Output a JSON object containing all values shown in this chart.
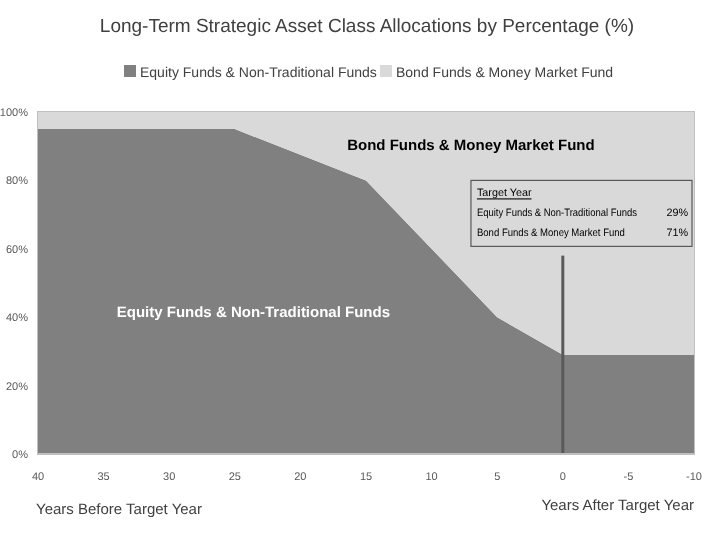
{
  "chart_data": {
    "type": "area",
    "stacked": true,
    "title": "Long-Term Strategic Asset Class Allocations by Percentage (%)",
    "xlabel": "Years Before Target Year",
    "x": [
      40,
      25,
      15,
      5,
      0,
      -10
    ],
    "series": [
      {
        "name": "Equity Funds & Non-Traditional Funds",
        "color": "#808080",
        "values": [
          95,
          95,
          80,
          40,
          29,
          29
        ]
      },
      {
        "name": "Bond Funds & Money Market Fund",
        "color": "#d9d9d9",
        "values": [
          5,
          5,
          20,
          60,
          71,
          71
        ]
      }
    ],
    "xlim": [
      40,
      -10
    ],
    "xticks": [
      40,
      35,
      30,
      25,
      20,
      15,
      10,
      5,
      0,
      -5,
      -10
    ],
    "ylim": [
      0,
      100
    ],
    "yticks": [
      {
        "value": 0,
        "label": "0%"
      },
      {
        "value": 20,
        "label": "20%"
      },
      {
        "value": 40,
        "label": "40%"
      },
      {
        "value": 60,
        "label": "60%"
      },
      {
        "value": 80,
        "label": "80%"
      },
      {
        "value": 100,
        "label": "100%"
      }
    ],
    "ref_lines": [
      {
        "axis": "x",
        "value": 0,
        "color": "#595959"
      }
    ],
    "legend": "top",
    "annotations": [
      "Target Year",
      "Equity Funds & Non-Traditional Funds",
      "29%",
      "Bond Funds & Money Market Fund",
      "71%",
      "Years After Target Year"
    ]
  }
}
